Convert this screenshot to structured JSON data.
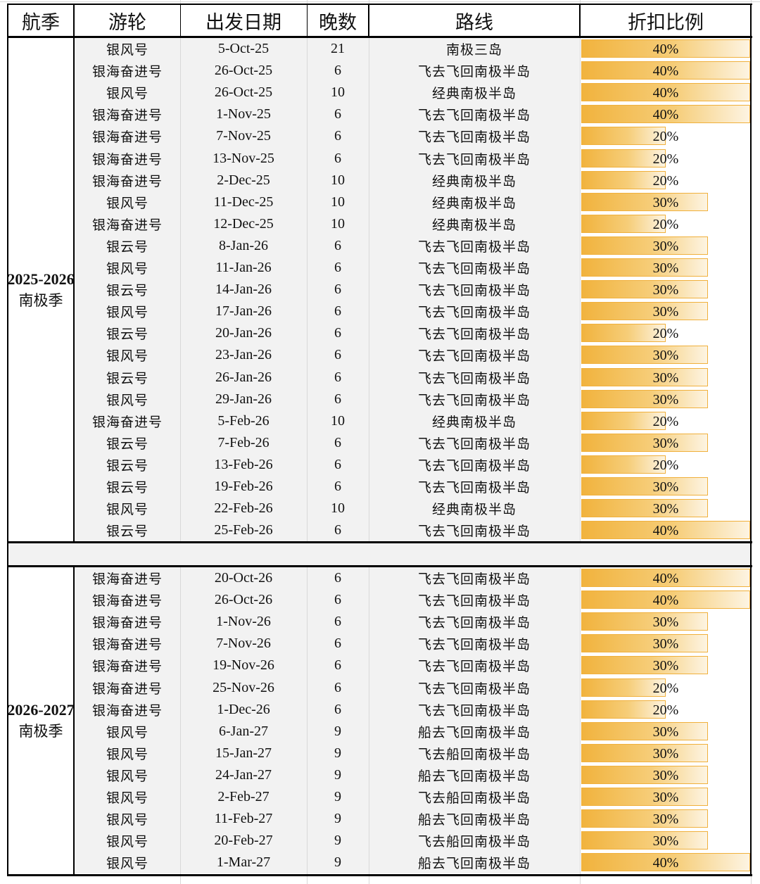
{
  "headers": {
    "season": "航季",
    "ship": "游轮",
    "date": "出发日期",
    "nights": "晚数",
    "route": "路线",
    "discount": "折扣比例"
  },
  "colors": {
    "bar_start": "#f1b33e",
    "bar_end": "#fdf4e2",
    "bar_border": "#f0b03c",
    "shade": "#f2f2f2"
  },
  "seasons": [
    {
      "year": "2025-2026",
      "name": "南极季",
      "rows": [
        {
          "ship": "银风号",
          "date": "5-Oct-25",
          "nights": "21",
          "route": "南极三岛",
          "discount": "40%",
          "pct": 40
        },
        {
          "ship": "银海奋进号",
          "date": "26-Oct-25",
          "nights": "6",
          "route": "飞去飞回南极半岛",
          "discount": "40%",
          "pct": 40
        },
        {
          "ship": "银风号",
          "date": "26-Oct-25",
          "nights": "10",
          "route": "经典南极半岛",
          "discount": "40%",
          "pct": 40
        },
        {
          "ship": "银海奋进号",
          "date": "1-Nov-25",
          "nights": "6",
          "route": "飞去飞回南极半岛",
          "discount": "40%",
          "pct": 40
        },
        {
          "ship": "银海奋进号",
          "date": "7-Nov-25",
          "nights": "6",
          "route": "飞去飞回南极半岛",
          "discount": "20%",
          "pct": 20
        },
        {
          "ship": "银海奋进号",
          "date": "13-Nov-25",
          "nights": "6",
          "route": "飞去飞回南极半岛",
          "discount": "20%",
          "pct": 20
        },
        {
          "ship": "银海奋进号",
          "date": "2-Dec-25",
          "nights": "10",
          "route": "经典南极半岛",
          "discount": "20%",
          "pct": 20
        },
        {
          "ship": "银风号",
          "date": "11-Dec-25",
          "nights": "10",
          "route": "经典南极半岛",
          "discount": "30%",
          "pct": 30
        },
        {
          "ship": "银海奋进号",
          "date": "12-Dec-25",
          "nights": "10",
          "route": "经典南极半岛",
          "discount": "20%",
          "pct": 20
        },
        {
          "ship": "银云号",
          "date": "8-Jan-26",
          "nights": "6",
          "route": "飞去飞回南极半岛",
          "discount": "30%",
          "pct": 30
        },
        {
          "ship": "银风号",
          "date": "11-Jan-26",
          "nights": "6",
          "route": "飞去飞回南极半岛",
          "discount": "30%",
          "pct": 30
        },
        {
          "ship": "银云号",
          "date": "14-Jan-26",
          "nights": "6",
          "route": "飞去飞回南极半岛",
          "discount": "30%",
          "pct": 30
        },
        {
          "ship": "银风号",
          "date": "17-Jan-26",
          "nights": "6",
          "route": "飞去飞回南极半岛",
          "discount": "30%",
          "pct": 30
        },
        {
          "ship": "银云号",
          "date": "20-Jan-26",
          "nights": "6",
          "route": "飞去飞回南极半岛",
          "discount": "20%",
          "pct": 20
        },
        {
          "ship": "银风号",
          "date": "23-Jan-26",
          "nights": "6",
          "route": "飞去飞回南极半岛",
          "discount": "30%",
          "pct": 30
        },
        {
          "ship": "银云号",
          "date": "26-Jan-26",
          "nights": "6",
          "route": "飞去飞回南极半岛",
          "discount": "30%",
          "pct": 30
        },
        {
          "ship": "银风号",
          "date": "29-Jan-26",
          "nights": "6",
          "route": "飞去飞回南极半岛",
          "discount": "30%",
          "pct": 30
        },
        {
          "ship": "银海奋进号",
          "date": "5-Feb-26",
          "nights": "10",
          "route": "经典南极半岛",
          "discount": "20%",
          "pct": 20
        },
        {
          "ship": "银云号",
          "date": "7-Feb-26",
          "nights": "6",
          "route": "飞去飞回南极半岛",
          "discount": "30%",
          "pct": 30
        },
        {
          "ship": "银云号",
          "date": "13-Feb-26",
          "nights": "6",
          "route": "飞去飞回南极半岛",
          "discount": "20%",
          "pct": 20
        },
        {
          "ship": "银云号",
          "date": "19-Feb-26",
          "nights": "6",
          "route": "飞去飞回南极半岛",
          "discount": "30%",
          "pct": 30
        },
        {
          "ship": "银风号",
          "date": "22-Feb-26",
          "nights": "10",
          "route": "经典南极半岛",
          "discount": "30%",
          "pct": 30
        },
        {
          "ship": "银云号",
          "date": "25-Feb-26",
          "nights": "6",
          "route": "飞去飞回南极半岛",
          "discount": "40%",
          "pct": 40
        }
      ]
    },
    {
      "year": "2026-2027",
      "name": "南极季",
      "rows": [
        {
          "ship": "银海奋进号",
          "date": "20-Oct-26",
          "nights": "6",
          "route": "飞去飞回南极半岛",
          "discount": "40%",
          "pct": 40
        },
        {
          "ship": "银海奋进号",
          "date": "26-Oct-26",
          "nights": "6",
          "route": "飞去飞回南极半岛",
          "discount": "40%",
          "pct": 40
        },
        {
          "ship": "银海奋进号",
          "date": "1-Nov-26",
          "nights": "6",
          "route": "飞去飞回南极半岛",
          "discount": "30%",
          "pct": 30
        },
        {
          "ship": "银海奋进号",
          "date": "7-Nov-26",
          "nights": "6",
          "route": "飞去飞回南极半岛",
          "discount": "30%",
          "pct": 30
        },
        {
          "ship": "银海奋进号",
          "date": "19-Nov-26",
          "nights": "6",
          "route": "飞去飞回南极半岛",
          "discount": "30%",
          "pct": 30
        },
        {
          "ship": "银海奋进号",
          "date": "25-Nov-26",
          "nights": "6",
          "route": "飞去飞回南极半岛",
          "discount": "20%",
          "pct": 20
        },
        {
          "ship": "银海奋进号",
          "date": "1-Dec-26",
          "nights": "6",
          "route": "飞去飞回南极半岛",
          "discount": "20%",
          "pct": 20
        },
        {
          "ship": "银风号",
          "date": "6-Jan-27",
          "nights": "9",
          "route": "船去飞回南极半岛",
          "discount": "30%",
          "pct": 30
        },
        {
          "ship": "银风号",
          "date": "15-Jan-27",
          "nights": "9",
          "route": "飞去船回南极半岛",
          "discount": "30%",
          "pct": 30
        },
        {
          "ship": "银风号",
          "date": "24-Jan-27",
          "nights": "9",
          "route": "船去飞回南极半岛",
          "discount": "30%",
          "pct": 30
        },
        {
          "ship": "银风号",
          "date": "2-Feb-27",
          "nights": "9",
          "route": "飞去船回南极半岛",
          "discount": "30%",
          "pct": 30
        },
        {
          "ship": "银风号",
          "date": "11-Feb-27",
          "nights": "9",
          "route": "船去飞回南极半岛",
          "discount": "30%",
          "pct": 30
        },
        {
          "ship": "银风号",
          "date": "20-Feb-27",
          "nights": "9",
          "route": "飞去船回南极半岛",
          "discount": "30%",
          "pct": 30
        },
        {
          "ship": "银风号",
          "date": "1-Mar-27",
          "nights": "9",
          "route": "船去飞回南极半岛",
          "discount": "40%",
          "pct": 40
        }
      ]
    }
  ]
}
